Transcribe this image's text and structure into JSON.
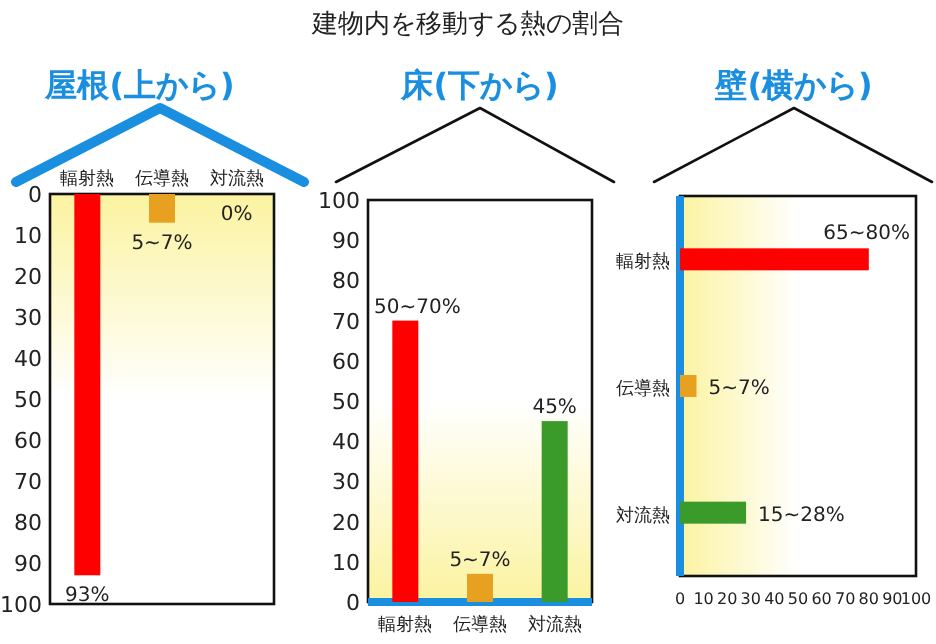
{
  "chart_data": [
    {
      "type": "other",
      "title": "建物内を移動する熱の割合"
    },
    {
      "type": "bar",
      "title": "屋根(上から)",
      "categories": [
        "輻射熱",
        "伝導熱",
        "対流熱"
      ],
      "values": [
        93,
        7,
        0
      ],
      "value_labels": [
        "93%",
        "5~7%",
        "0%"
      ],
      "colors": [
        "#ff0000",
        "#e8a020",
        "#3a9a2a"
      ],
      "ylim": [
        100,
        0
      ],
      "yticks": [
        0,
        10,
        20,
        30,
        40,
        50,
        60,
        70,
        80,
        90,
        100
      ]
    },
    {
      "type": "bar",
      "title": "床(下から)",
      "categories": [
        "輻射熱",
        "伝導熱",
        "対流熱"
      ],
      "values": [
        70,
        7,
        45
      ],
      "value_labels": [
        "50~70%",
        "5~7%",
        "45%"
      ],
      "colors": [
        "#ff0000",
        "#e8a020",
        "#3a9a2a"
      ],
      "ylim": [
        0,
        100
      ],
      "yticks": [
        0,
        10,
        20,
        30,
        40,
        50,
        60,
        70,
        80,
        90,
        100
      ]
    },
    {
      "type": "bar",
      "orientation": "horizontal",
      "title": "壁(横から)",
      "categories": [
        "輻射熱",
        "伝導熱",
        "対流熱"
      ],
      "values": [
        80,
        7,
        28
      ],
      "value_labels": [
        "65~80%",
        "5~7%",
        "15~28%"
      ],
      "colors": [
        "#ff0000",
        "#e8a020",
        "#3a9a2a"
      ],
      "xlim": [
        0,
        100
      ],
      "xticks": [
        0,
        10,
        20,
        30,
        40,
        50,
        60,
        70,
        80,
        90,
        100
      ]
    }
  ]
}
